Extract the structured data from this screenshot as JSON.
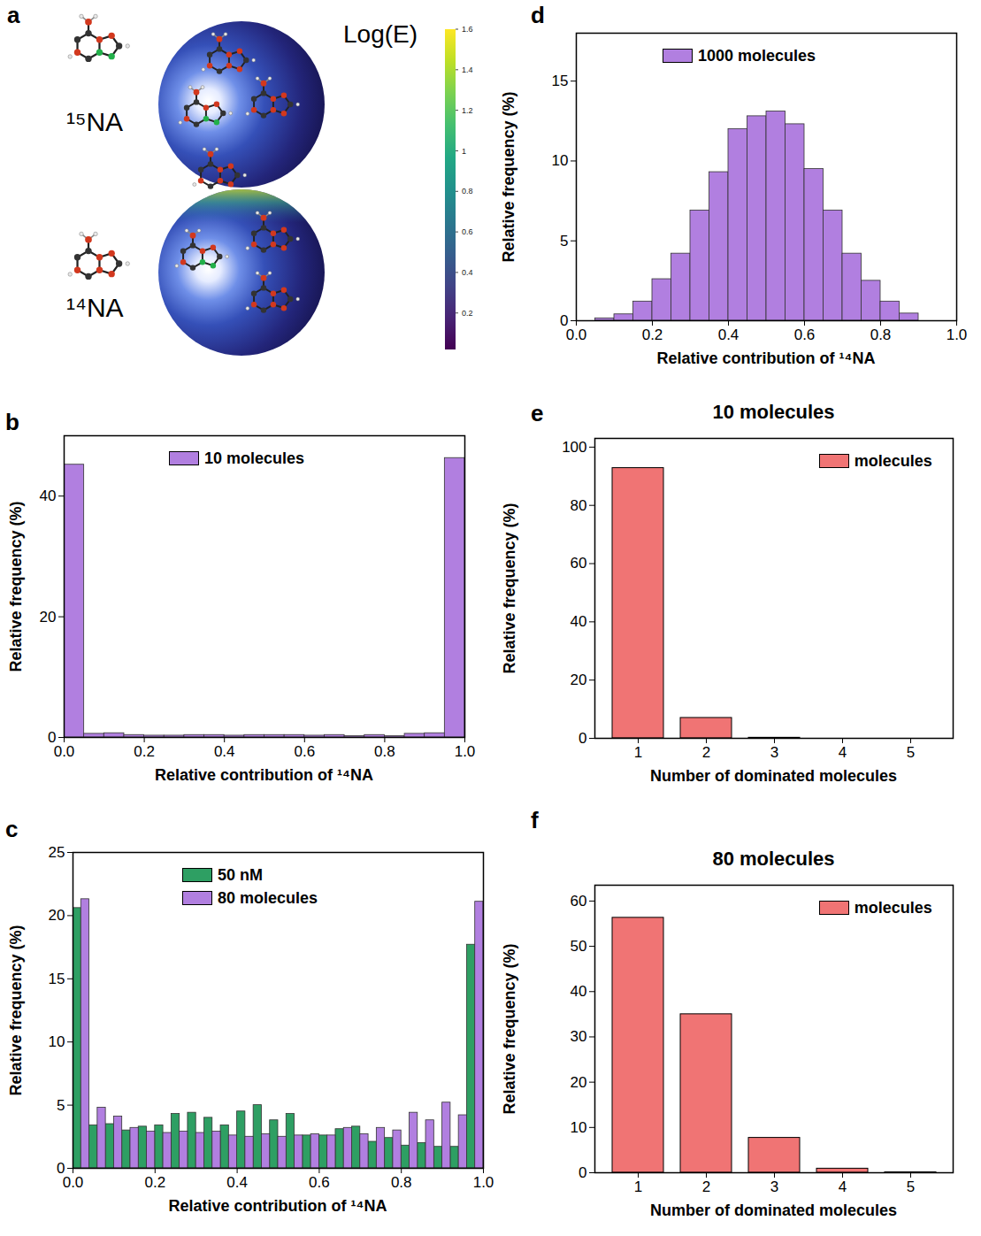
{
  "chart_data": [
    {
      "panel": "a",
      "type": "diagram",
      "labels": [
        "¹⁵NA",
        "¹⁴NA"
      ],
      "colorbar": {
        "title": "Log(E)",
        "range": [
          0.02,
          1.6
        ],
        "ticks": [
          0.2,
          0.4,
          0.6,
          0.8,
          1,
          1.2,
          1.4,
          1.6
        ]
      }
    },
    {
      "panel": "b",
      "type": "histogram",
      "x_label": "Relative contribution of ¹⁴NA",
      "y_label": "Relative frequency (%)",
      "bins": [
        0,
        0.05,
        0.1,
        0.15,
        0.2,
        0.25,
        0.3,
        0.35,
        0.4,
        0.45,
        0.5,
        0.55,
        0.6,
        0.65,
        0.7,
        0.75,
        0.8,
        0.85,
        0.9,
        0.95,
        1
      ],
      "series": [
        {
          "name": "10 molecules",
          "color": "#b17fe0",
          "values": [
            45.2,
            0.6,
            0.7,
            0.4,
            0.3,
            0.3,
            0.4,
            0.4,
            0.3,
            0.4,
            0.4,
            0.4,
            0.3,
            0.4,
            0.2,
            0.4,
            0.2,
            0.6,
            0.7,
            46.3
          ]
        }
      ],
      "xlim": [
        0,
        1
      ],
      "xticks": [
        {
          "value": 0,
          "label": "0.0"
        },
        0.2,
        0.4,
        0.6,
        0.8,
        {
          "value": 1,
          "label": "1.0"
        }
      ],
      "ylim": [
        0,
        50
      ],
      "yticks": [
        0,
        20,
        40
      ],
      "legend": "top"
    },
    {
      "panel": "c",
      "type": "histogram",
      "x_label": "Relative contribution of ¹⁴NA",
      "y_label": "Relative frequency (%)",
      "bins": [
        0,
        0.04,
        0.08,
        0.12,
        0.16,
        0.2,
        0.24,
        0.28,
        0.32,
        0.36,
        0.4,
        0.44,
        0.48,
        0.52,
        0.56,
        0.6,
        0.64,
        0.68,
        0.72,
        0.76,
        0.8,
        0.84,
        0.88,
        0.92,
        0.96,
        1
      ],
      "series": [
        {
          "name": "50 nM",
          "color": "#2e9f63",
          "values": [
            20.6,
            3.4,
            3.5,
            3.0,
            3.3,
            3.4,
            4.3,
            4.4,
            4.0,
            3.4,
            4.5,
            5.0,
            3.8,
            4.3,
            2.6,
            2.6,
            3.1,
            3.3,
            2.1,
            2.4,
            1.8,
            2.0,
            1.7,
            1.7,
            17.7
          ]
        },
        {
          "name": "80 molecules",
          "color": "#b17fe0",
          "values": [
            21.3,
            4.8,
            4.1,
            3.2,
            2.9,
            2.8,
            2.9,
            2.8,
            2.9,
            2.6,
            2.5,
            2.7,
            2.5,
            2.6,
            2.7,
            2.6,
            3.2,
            2.7,
            3.2,
            3.0,
            4.4,
            3.8,
            5.2,
            4.2,
            21.1
          ]
        }
      ],
      "xlim": [
        0,
        1
      ],
      "xticks": [
        {
          "value": 0,
          "label": "0.0"
        },
        0.2,
        0.4,
        0.6,
        0.8,
        {
          "value": 1,
          "label": "1.0"
        }
      ],
      "ylim": [
        0,
        25
      ],
      "yticks": [
        0,
        5,
        10,
        15,
        20,
        25
      ],
      "legend": "top"
    },
    {
      "panel": "d",
      "type": "histogram",
      "x_label": "Relative contribution of ¹⁴NA",
      "y_label": "Relative frequency (%)",
      "bins": [
        0.05,
        0.1,
        0.15,
        0.2,
        0.25,
        0.3,
        0.35,
        0.4,
        0.45,
        0.5,
        0.55,
        0.6,
        0.65,
        0.7,
        0.75,
        0.8,
        0.85,
        0.9
      ],
      "series": [
        {
          "name": "1000 molecules",
          "color": "#b17fe0",
          "values": [
            0.15,
            0.4,
            1.2,
            2.6,
            4.2,
            6.9,
            9.3,
            12.0,
            12.8,
            13.1,
            12.3,
            9.5,
            6.9,
            4.2,
            2.5,
            1.2,
            0.45
          ]
        }
      ],
      "xlim": [
        0,
        1
      ],
      "xticks": [
        {
          "value": 0,
          "label": "0.0"
        },
        0.2,
        0.4,
        0.6,
        0.8,
        {
          "value": 1,
          "label": "1.0"
        }
      ],
      "ylim": [
        0,
        18
      ],
      "yticks": [
        0,
        5,
        10,
        15
      ],
      "legend": "top"
    },
    {
      "panel": "e",
      "type": "bar",
      "title": "10 molecules",
      "x_label": "Number of dominated molecules",
      "y_label": "Relative frequency (%)",
      "categories": [
        1,
        2,
        3,
        4,
        5
      ],
      "series": [
        {
          "name": "molecules",
          "color": "#f07474",
          "values": [
            92.8,
            7.0,
            0.2,
            0,
            0
          ]
        }
      ],
      "ylim": [
        0,
        103
      ],
      "yticks": [
        0,
        20,
        40,
        60,
        80,
        100
      ],
      "legend": "top-right"
    },
    {
      "panel": "f",
      "type": "bar",
      "title": "80 molecules",
      "x_label": "Number of dominated molecules",
      "y_label": "Relative frequency (%)",
      "categories": [
        1,
        2,
        3,
        4,
        5
      ],
      "series": [
        {
          "name": "molecules",
          "color": "#f07474",
          "values": [
            56.3,
            35.0,
            7.7,
            0.9,
            0.1
          ]
        }
      ],
      "ylim": [
        0,
        63.5
      ],
      "yticks": [
        0,
        10,
        20,
        30,
        40,
        50,
        60
      ],
      "legend": "top-right"
    }
  ]
}
